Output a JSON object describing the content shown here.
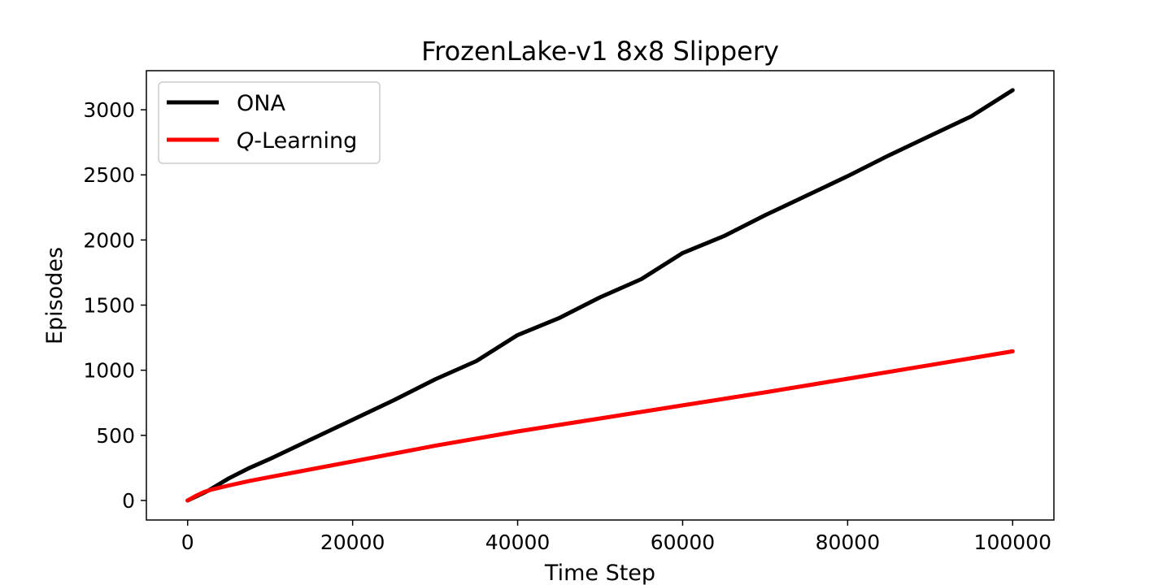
{
  "chart_data": {
    "type": "line",
    "title": "FrozenLake-v1 8x8 Slippery",
    "xlabel": "Time Step",
    "ylabel": "Episodes",
    "xlim": [
      -5000,
      105000
    ],
    "ylim": [
      -150,
      3300
    ],
    "xticks": [
      0,
      20000,
      40000,
      60000,
      80000,
      100000
    ],
    "xtick_labels": [
      "0",
      "20000",
      "40000",
      "60000",
      "80000",
      "100000"
    ],
    "yticks": [
      0,
      500,
      1000,
      1500,
      2000,
      2500,
      3000
    ],
    "ytick_labels": [
      "0",
      "500",
      "1000",
      "1500",
      "2000",
      "2500",
      "3000"
    ],
    "grid": false,
    "legend_position": "top-left",
    "series": [
      {
        "name": "ONA",
        "color": "#000000",
        "x": [
          0,
          2500,
          5000,
          7500,
          10000,
          15000,
          20000,
          25000,
          30000,
          35000,
          40000,
          45000,
          50000,
          55000,
          60000,
          65000,
          70000,
          75000,
          80000,
          85000,
          90000,
          95000,
          100000
        ],
        "y": [
          0,
          75,
          170,
          250,
          320,
          470,
          620,
          770,
          930,
          1070,
          1270,
          1400,
          1560,
          1700,
          1900,
          2030,
          2190,
          2340,
          2490,
          2650,
          2800,
          2950,
          3150
        ]
      },
      {
        "name": "Q-Learning",
        "name_italic": "Q",
        "name_rest": "-Learning",
        "color": "#ff0000",
        "x": [
          0,
          1000,
          2000,
          3000,
          5000,
          7500,
          10000,
          15000,
          20000,
          30000,
          40000,
          50000,
          60000,
          70000,
          80000,
          90000,
          100000
        ],
        "y": [
          0,
          35,
          65,
          85,
          115,
          150,
          180,
          240,
          300,
          420,
          530,
          630,
          730,
          830,
          935,
          1040,
          1145
        ]
      }
    ]
  }
}
